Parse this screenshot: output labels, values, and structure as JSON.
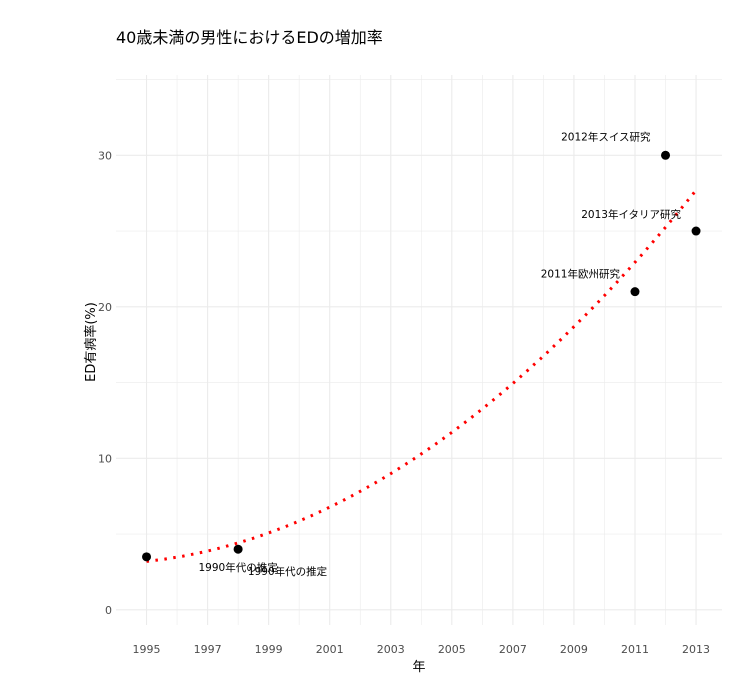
{
  "chart_data": {
    "type": "scatter",
    "title": "40歳未満の男性におけるEDの増加率",
    "xlabel": "年",
    "ylabel": "ED有病率(%)",
    "xlim": [
      1994,
      2013.85
    ],
    "ylim": [
      -1,
      35.3
    ],
    "x_ticks": [
      1995,
      1997,
      1999,
      2001,
      2003,
      2005,
      2007,
      2009,
      2011,
      2013
    ],
    "y_ticks": [
      0,
      10,
      20,
      30
    ],
    "grid": true,
    "points": [
      {
        "x": 1995,
        "y": 3.5,
        "label": "1990年代の推定"
      },
      {
        "x": 1998,
        "y": 4.0,
        "label": "1990年代の推定"
      },
      {
        "x": 2011,
        "y": 21,
        "label": "2011年欧州研究"
      },
      {
        "x": 2012,
        "y": 30,
        "label": "2012年スイス研究"
      },
      {
        "x": 2013,
        "y": 25,
        "label": "2013年イタリア研究"
      }
    ],
    "trendline": {
      "type": "quadratic fit",
      "style": "dotted",
      "color": "#ff0000"
    },
    "point_color": "#000000"
  }
}
